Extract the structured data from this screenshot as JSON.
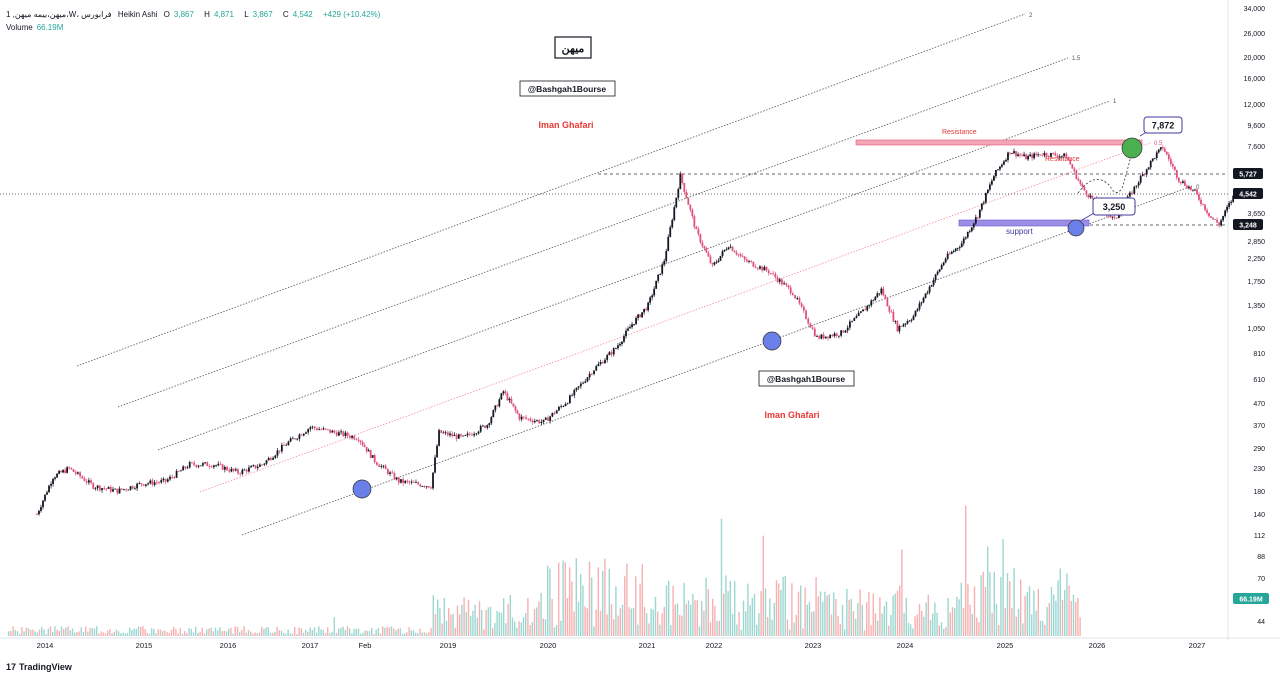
{
  "header": {
    "symbol": "1 ,میهن،بیمه میهن،W، فرابورس",
    "chart_style": "Heikin Ashi",
    "open_label": "O",
    "open": "3,867",
    "high_label": "H",
    "high": "4,871",
    "low_label": "L",
    "low": "3,867",
    "close_label": "C",
    "close": "4,542",
    "change": "+429 (+10.42%)"
  },
  "volume": {
    "label": "Volume",
    "value": "66.19M"
  },
  "annotations": {
    "title_box": "میهن",
    "handle_top": "@Bashgah1Bourse",
    "author_top": "Iman Ghafari",
    "handle_mid": "@Bashgah1Bourse",
    "author_mid": "Iman Ghafari",
    "resistance_1": "Resistance",
    "resistance_2": "Resistance",
    "support": "support",
    "target_label": "7,872",
    "low_label": "3,250"
  },
  "logo": "TradingView",
  "colors": {
    "up": "#131722",
    "down": "#e0507a",
    "volume_up": "#26a69a",
    "volume_down": "#ef5350",
    "target_green": "#4caf50",
    "pivot_blue": "#6b7fe8",
    "resistance_bar": "#f4a6b6",
    "support_bar": "#9c8ee6",
    "center_line": "#f48fa7"
  },
  "chart_data": {
    "type": "candlestick",
    "scale": "log",
    "x_ticks": [
      "2014",
      "2015",
      "2016",
      "2017",
      "Feb",
      "2019",
      "2020",
      "2021",
      "2022",
      "2023",
      "2024",
      "2025",
      "2026",
      "2027"
    ],
    "y_ticks": [
      "34,000",
      "26,000",
      "20,000",
      "16,000",
      "12,000",
      "9,600",
      "7,600",
      "5,727",
      "4,542",
      "3,650",
      "3,248",
      "2,850",
      "2,250",
      "1,750",
      "1,350",
      "1,050",
      "810",
      "610",
      "470",
      "370",
      "290",
      "230",
      "180",
      "140",
      "112",
      "88",
      "70",
      "66.19M",
      "44"
    ],
    "price_labels": {
      "current": "4,542",
      "level_upper": "5,727",
      "level_lower": "3,248",
      "volume": "66.19M"
    },
    "channel_labels": [
      "2",
      "1.5",
      "1",
      "0.5",
      "0"
    ],
    "price_path": [
      [
        "2013-12",
        140
      ],
      [
        "2014-02",
        210
      ],
      [
        "2014-04",
        230
      ],
      [
        "2014-07",
        190
      ],
      [
        "2014-10",
        180
      ],
      [
        "2015-01",
        195
      ],
      [
        "2015-04",
        200
      ],
      [
        "2015-07",
        240
      ],
      [
        "2015-10",
        240
      ],
      [
        "2016-01",
        220
      ],
      [
        "2016-04",
        240
      ],
      [
        "2016-07",
        300
      ],
      [
        "2016-10",
        360
      ],
      [
        "2017-01",
        340
      ],
      [
        "2017-04",
        320
      ],
      [
        "2017-06",
        250
      ],
      [
        "2017-09",
        200
      ],
      [
        "2018-01",
        190
      ],
      [
        "2018-02",
        340
      ],
      [
        "2018-05",
        320
      ],
      [
        "2018-08",
        370
      ],
      [
        "2018-10",
        530
      ],
      [
        "2018-12",
        400
      ],
      [
        "2019-03",
        380
      ],
      [
        "2019-06",
        480
      ],
      [
        "2019-09",
        660
      ],
      [
        "2019-12",
        850
      ],
      [
        "2020-02",
        1100
      ],
      [
        "2020-04",
        1350
      ],
      [
        "2020-06",
        2200
      ],
      [
        "2020-08",
        5500
      ],
      [
        "2020-10",
        3000
      ],
      [
        "2020-12",
        2050
      ],
      [
        "2021-02",
        2600
      ],
      [
        "2021-04",
        2200
      ],
      [
        "2021-07",
        1950
      ],
      [
        "2021-10",
        1550
      ],
      [
        "2022-01",
        950
      ],
      [
        "2022-04",
        1000
      ],
      [
        "2022-07",
        1300
      ],
      [
        "2022-09",
        1600
      ],
      [
        "2022-11",
        1050
      ],
      [
        "2023-01",
        1200
      ],
      [
        "2023-03",
        1650
      ],
      [
        "2023-05",
        2250
      ],
      [
        "2023-07",
        2650
      ],
      [
        "2023-09",
        3600
      ],
      [
        "2023-11",
        5500
      ],
      [
        "2024-01",
        7200
      ],
      [
        "2024-03",
        6700
      ],
      [
        "2024-05",
        7000
      ],
      [
        "2024-08",
        6800
      ],
      [
        "2024-10",
        4800
      ],
      [
        "2024-12",
        4000
      ],
      [
        "2025-02",
        3400
      ],
      [
        "2025-05",
        5200
      ],
      [
        "2025-07",
        6800
      ],
      [
        "2025-08",
        7500
      ],
      [
        "2025-10",
        5300
      ],
      [
        "2025-12",
        4600
      ],
      [
        "2026-02",
        3500
      ],
      [
        "2026-03",
        3250
      ],
      [
        "2026-04",
        3867
      ],
      [
        "2026-05",
        4542
      ]
    ],
    "resistance": 7872,
    "support": 3250,
    "forecast_target": 7872
  }
}
